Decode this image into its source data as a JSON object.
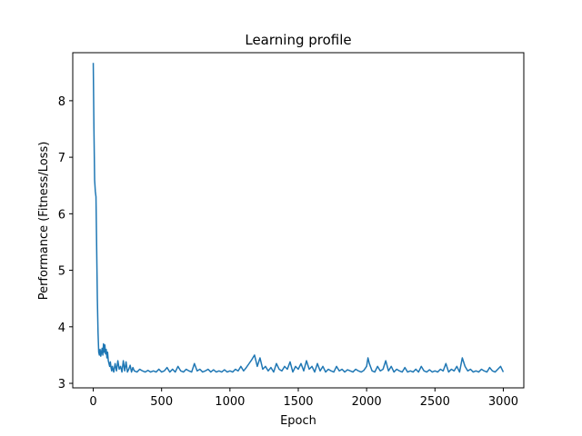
{
  "chart_data": {
    "type": "line",
    "title": "Learning profile",
    "xlabel": "Epoch",
    "ylabel": "Performance (Fitness/Loss)",
    "xlim": [
      -150,
      3150
    ],
    "ylim": [
      2.92,
      8.85
    ],
    "xticks": [
      0,
      500,
      1000,
      1500,
      2000,
      2500,
      3000
    ],
    "yticks": [
      3,
      4,
      5,
      6,
      7,
      8
    ],
    "grid": false,
    "color": "#1f77b4",
    "series": [
      {
        "x": [
          0,
          5,
          10,
          15,
          20,
          25,
          30,
          35,
          40,
          45,
          50,
          55,
          60,
          65,
          70,
          75,
          80,
          85,
          90,
          95,
          100,
          105,
          110,
          115,
          120,
          125,
          130,
          135,
          140,
          150,
          160,
          170,
          180,
          190,
          200,
          210,
          220,
          230,
          240,
          250,
          260,
          270,
          280,
          290,
          300,
          320,
          340,
          360,
          380,
          400,
          420,
          440,
          460,
          480,
          500,
          520,
          540,
          560,
          580,
          600,
          620,
          640,
          660,
          680,
          700,
          720,
          740,
          760,
          780,
          800,
          820,
          840,
          860,
          880,
          900,
          920,
          940,
          960,
          980,
          1000,
          1020,
          1040,
          1060,
          1080,
          1100,
          1120,
          1140,
          1160,
          1180,
          1200,
          1220,
          1240,
          1260,
          1280,
          1300,
          1320,
          1340,
          1360,
          1380,
          1400,
          1420,
          1440,
          1460,
          1480,
          1500,
          1520,
          1540,
          1560,
          1580,
          1600,
          1620,
          1640,
          1660,
          1680,
          1700,
          1720,
          1740,
          1760,
          1780,
          1800,
          1820,
          1840,
          1860,
          1880,
          1900,
          1920,
          1940,
          1960,
          1980,
          2000,
          2010,
          2020,
          2040,
          2060,
          2080,
          2100,
          2120,
          2140,
          2160,
          2180,
          2200,
          2220,
          2240,
          2260,
          2280,
          2300,
          2320,
          2340,
          2360,
          2380,
          2400,
          2420,
          2440,
          2460,
          2480,
          2500,
          2520,
          2540,
          2560,
          2580,
          2600,
          2620,
          2640,
          2660,
          2680,
          2700,
          2720,
          2740,
          2760,
          2780,
          2800,
          2820,
          2840,
          2860,
          2880,
          2900,
          2920,
          2940,
          2960,
          2980,
          3000
        ],
        "y": [
          8.67,
          7.5,
          6.6,
          6.4,
          6.3,
          5.4,
          4.5,
          3.9,
          3.55,
          3.5,
          3.6,
          3.48,
          3.55,
          3.62,
          3.5,
          3.7,
          3.55,
          3.68,
          3.52,
          3.6,
          3.45,
          3.55,
          3.4,
          3.35,
          3.3,
          3.38,
          3.28,
          3.22,
          3.3,
          3.2,
          3.35,
          3.22,
          3.4,
          3.25,
          3.3,
          3.2,
          3.4,
          3.22,
          3.38,
          3.2,
          3.25,
          3.32,
          3.2,
          3.28,
          3.22,
          3.2,
          3.25,
          3.22,
          3.2,
          3.23,
          3.2,
          3.22,
          3.2,
          3.25,
          3.2,
          3.22,
          3.28,
          3.2,
          3.25,
          3.2,
          3.3,
          3.22,
          3.2,
          3.25,
          3.22,
          3.2,
          3.35,
          3.22,
          3.25,
          3.2,
          3.22,
          3.25,
          3.2,
          3.24,
          3.2,
          3.22,
          3.2,
          3.24,
          3.2,
          3.22,
          3.2,
          3.25,
          3.22,
          3.3,
          3.22,
          3.28,
          3.35,
          3.42,
          3.5,
          3.3,
          3.45,
          3.25,
          3.3,
          3.22,
          3.28,
          3.2,
          3.35,
          3.25,
          3.22,
          3.3,
          3.25,
          3.38,
          3.2,
          3.3,
          3.25,
          3.35,
          3.22,
          3.4,
          3.25,
          3.3,
          3.2,
          3.35,
          3.22,
          3.3,
          3.2,
          3.25,
          3.22,
          3.2,
          3.3,
          3.22,
          3.25,
          3.2,
          3.24,
          3.22,
          3.2,
          3.25,
          3.22,
          3.2,
          3.23,
          3.3,
          3.45,
          3.35,
          3.22,
          3.2,
          3.3,
          3.22,
          3.25,
          3.4,
          3.22,
          3.3,
          3.2,
          3.25,
          3.22,
          3.2,
          3.28,
          3.2,
          3.22,
          3.2,
          3.25,
          3.2,
          3.3,
          3.22,
          3.2,
          3.24,
          3.2,
          3.22,
          3.2,
          3.25,
          3.22,
          3.35,
          3.2,
          3.25,
          3.22,
          3.3,
          3.2,
          3.45,
          3.3,
          3.22,
          3.25,
          3.2,
          3.22,
          3.2,
          3.25,
          3.22,
          3.2,
          3.28,
          3.22,
          3.2,
          3.25,
          3.3,
          3.2
        ]
      }
    ]
  }
}
